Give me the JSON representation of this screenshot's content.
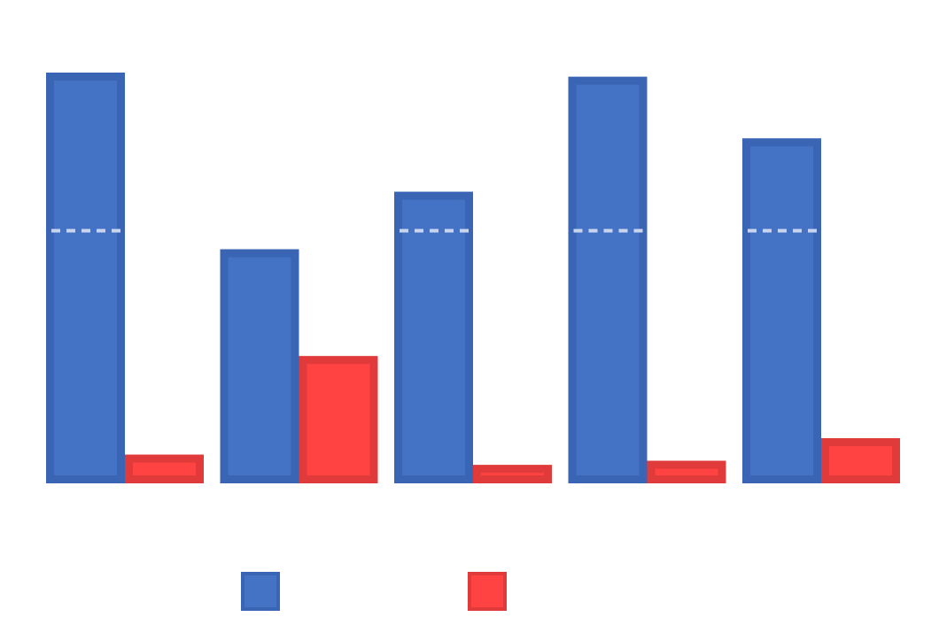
{
  "chart_data": {
    "type": "bar",
    "categories": [
      "",
      "",
      "",
      "",
      ""
    ],
    "series": [
      {
        "color": "#4472c4",
        "stroke": "#3a64b4",
        "values": [
          100,
          57,
          71,
          99,
          84
        ]
      },
      {
        "color": "#ff4242",
        "stroke": "#e03a3a",
        "values": [
          7,
          31,
          4.5,
          5.5,
          11
        ]
      }
    ],
    "ylim": [
      0,
      100
    ],
    "reference_line": {
      "value": 61.5,
      "color": "#c9d4ee",
      "style": "dashed"
    },
    "grid": false,
    "legend_position": "bottom"
  }
}
